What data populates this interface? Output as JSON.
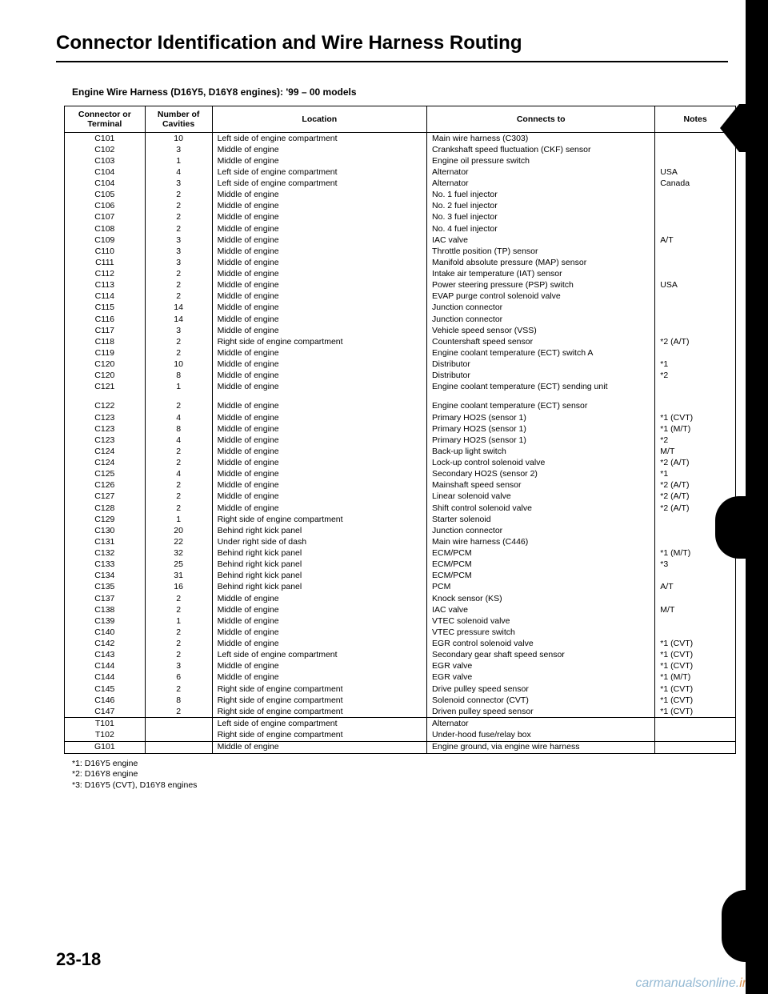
{
  "title": "Connector Identification and Wire Harness Routing",
  "subtitle": "Engine Wire Harness (D16Y5, D16Y8 engines): '99 – 00 models",
  "columns": {
    "conn": "Connector or Terminal",
    "cav": "Number of Cavities",
    "loc": "Location",
    "to": "Connects to",
    "note": "Notes"
  },
  "rows": [
    {
      "c": "C101",
      "n": "10",
      "l": "Left side of engine compartment",
      "t": "Main wire harness (C303)",
      "x": ""
    },
    {
      "c": "C102",
      "n": "3",
      "l": "Middle of engine",
      "t": "Crankshaft speed fluctuation (CKF) sensor",
      "x": ""
    },
    {
      "c": "C103",
      "n": "1",
      "l": "Middle of engine",
      "t": "Engine oil pressure switch",
      "x": ""
    },
    {
      "c": "C104",
      "n": "4",
      "l": "Left side of engine compartment",
      "t": "Alternator",
      "x": "USA"
    },
    {
      "c": "C104",
      "n": "3",
      "l": "Left side of engine compartment",
      "t": "Alternator",
      "x": "Canada"
    },
    {
      "c": "C105",
      "n": "2",
      "l": "Middle of engine",
      "t": "No. 1 fuel injector",
      "x": ""
    },
    {
      "c": "C106",
      "n": "2",
      "l": "Middle of engine",
      "t": "No. 2 fuel injector",
      "x": ""
    },
    {
      "c": "C107",
      "n": "2",
      "l": "Middle of engine",
      "t": "No. 3 fuel injector",
      "x": ""
    },
    {
      "c": "C108",
      "n": "2",
      "l": "Middle of engine",
      "t": "No. 4 fuel injector",
      "x": ""
    },
    {
      "c": "C109",
      "n": "3",
      "l": "Middle of engine",
      "t": "IAC valve",
      "x": "A/T"
    },
    {
      "c": "C110",
      "n": "3",
      "l": "Middle of engine",
      "t": "Throttle position (TP) sensor",
      "x": ""
    },
    {
      "c": "C111",
      "n": "3",
      "l": "Middle of engine",
      "t": "Manifold absolute pressure (MAP) sensor",
      "x": ""
    },
    {
      "c": "C112",
      "n": "2",
      "l": "Middle of engine",
      "t": "Intake air temperature (IAT) sensor",
      "x": ""
    },
    {
      "c": "C113",
      "n": "2",
      "l": "Middle of engine",
      "t": "Power steering pressure (PSP) switch",
      "x": "USA"
    },
    {
      "c": "C114",
      "n": "2",
      "l": "Middle of engine",
      "t": "EVAP purge control solenoid valve",
      "x": ""
    },
    {
      "c": "C115",
      "n": "14",
      "l": "Middle of engine",
      "t": "Junction connector",
      "x": ""
    },
    {
      "c": "C116",
      "n": "14",
      "l": "Middle of engine",
      "t": "Junction connector",
      "x": ""
    },
    {
      "c": "C117",
      "n": "3",
      "l": "Middle of engine",
      "t": "Vehicle speed sensor (VSS)",
      "x": ""
    },
    {
      "c": "C118",
      "n": "2",
      "l": "Right side of engine compartment",
      "t": "Countershaft speed sensor",
      "x": "*2 (A/T)"
    },
    {
      "c": "C119",
      "n": "2",
      "l": "Middle of engine",
      "t": "Engine coolant temperature (ECT) switch A",
      "x": ""
    },
    {
      "c": "C120",
      "n": "10",
      "l": "Middle of engine",
      "t": "Distributor",
      "x": "*1"
    },
    {
      "c": "C120",
      "n": "8",
      "l": "Middle of engine",
      "t": "Distributor",
      "x": "*2"
    },
    {
      "c": "C121",
      "n": "1",
      "l": "Middle of engine",
      "t": "Engine coolant temperature (ECT) sending unit",
      "x": ""
    },
    {
      "gap": true
    },
    {
      "c": "C122",
      "n": "2",
      "l": "Middle of engine",
      "t": "Engine coolant temperature (ECT) sensor",
      "x": ""
    },
    {
      "c": "C123",
      "n": "4",
      "l": "Middle of engine",
      "t": "Primary HO2S (sensor 1)",
      "x": "*1 (CVT)"
    },
    {
      "c": "C123",
      "n": "8",
      "l": "Middle of engine",
      "t": "Primary HO2S (sensor 1)",
      "x": "*1 (M/T)"
    },
    {
      "c": "C123",
      "n": "4",
      "l": "Middle of engine",
      "t": "Primary HO2S (sensor 1)",
      "x": "*2"
    },
    {
      "c": "C124",
      "n": "2",
      "l": "Middle of engine",
      "t": "Back-up light switch",
      "x": "M/T"
    },
    {
      "c": "C124",
      "n": "2",
      "l": "Middle of engine",
      "t": "Lock-up control solenoid valve",
      "x": "*2 (A/T)"
    },
    {
      "c": "C125",
      "n": "4",
      "l": "Middle of engine",
      "t": "Secondary HO2S (sensor 2)",
      "x": "*1"
    },
    {
      "c": "C126",
      "n": "2",
      "l": "Middle of engine",
      "t": "Mainshaft speed sensor",
      "x": "*2 (A/T)"
    },
    {
      "c": "C127",
      "n": "2",
      "l": "Middle of engine",
      "t": "Linear solenoid valve",
      "x": "*2 (A/T)"
    },
    {
      "c": "C128",
      "n": "2",
      "l": "Middle of engine",
      "t": "Shift control solenoid valve",
      "x": "*2 (A/T)"
    },
    {
      "c": "C129",
      "n": "1",
      "l": "Right side of engine compartment",
      "t": "Starter solenoid",
      "x": ""
    },
    {
      "c": "C130",
      "n": "20",
      "l": "Behind right kick panel",
      "t": "Junction connector",
      "x": ""
    },
    {
      "c": "C131",
      "n": "22",
      "l": "Under right side of dash",
      "t": "Main wire harness (C446)",
      "x": ""
    },
    {
      "c": "C132",
      "n": "32",
      "l": "Behind right kick panel",
      "t": "ECM/PCM",
      "x": "*1 (M/T)"
    },
    {
      "c": "C133",
      "n": "25",
      "l": "Behind right kick panel",
      "t": "ECM/PCM",
      "x": "*3"
    },
    {
      "c": "C134",
      "n": "31",
      "l": "Behind right kick panel",
      "t": "ECM/PCM",
      "x": ""
    },
    {
      "c": "C135",
      "n": "16",
      "l": "Behind right kick panel",
      "t": "PCM",
      "x": "A/T"
    },
    {
      "c": "C137",
      "n": "2",
      "l": "Middle of engine",
      "t": "Knock sensor (KS)",
      "x": ""
    },
    {
      "c": "C138",
      "n": "2",
      "l": "Middle of engine",
      "t": "IAC valve",
      "x": "M/T"
    },
    {
      "c": "C139",
      "n": "1",
      "l": "Middle of engine",
      "t": "VTEC solenoid valve",
      "x": ""
    },
    {
      "c": "C140",
      "n": "2",
      "l": "Middle of engine",
      "t": "VTEC pressure switch",
      "x": ""
    },
    {
      "c": "C142",
      "n": "2",
      "l": "Middle of engine",
      "t": "EGR control solenoid valve",
      "x": "*1 (CVT)"
    },
    {
      "c": "C143",
      "n": "2",
      "l": "Left side of engine compartment",
      "t": "Secondary gear shaft speed sensor",
      "x": "*1 (CVT)"
    },
    {
      "c": "C144",
      "n": "3",
      "l": "Middle of engine",
      "t": "EGR valve",
      "x": "*1 (CVT)"
    },
    {
      "c": "C144",
      "n": "6",
      "l": "Middle of engine",
      "t": "EGR valve",
      "x": "*1 (M/T)"
    },
    {
      "c": "C145",
      "n": "2",
      "l": "Right side of engine compartment",
      "t": "Drive pulley speed sensor",
      "x": "*1 (CVT)"
    },
    {
      "c": "C146",
      "n": "8",
      "l": "Right side of engine compartment",
      "t": "Solenoid connector (CVT)",
      "x": "*1 (CVT)"
    },
    {
      "c": "C147",
      "n": "2",
      "l": "Right side of engine compartment",
      "t": "Driven pulley speed sensor",
      "x": "*1 (CVT)"
    }
  ],
  "sections": [
    [
      {
        "c": "T101",
        "n": "",
        "l": "Left side of engine compartment",
        "t": "Alternator",
        "x": ""
      },
      {
        "c": "T102",
        "n": "",
        "l": "Right side of engine compartment",
        "t": "Under-hood fuse/relay box",
        "x": ""
      }
    ],
    [
      {
        "c": "G101",
        "n": "",
        "l": "Middle of engine",
        "t": "Engine ground, via engine wire harness",
        "x": ""
      }
    ]
  ],
  "footnotes": [
    "*1: D16Y5 engine",
    "*2: D16Y8 engine",
    "*3: D16Y5 (CVT), D16Y8 engines"
  ],
  "page_number": "23-18",
  "watermark_a": "carmanualsonline.",
  "watermark_b": "info"
}
